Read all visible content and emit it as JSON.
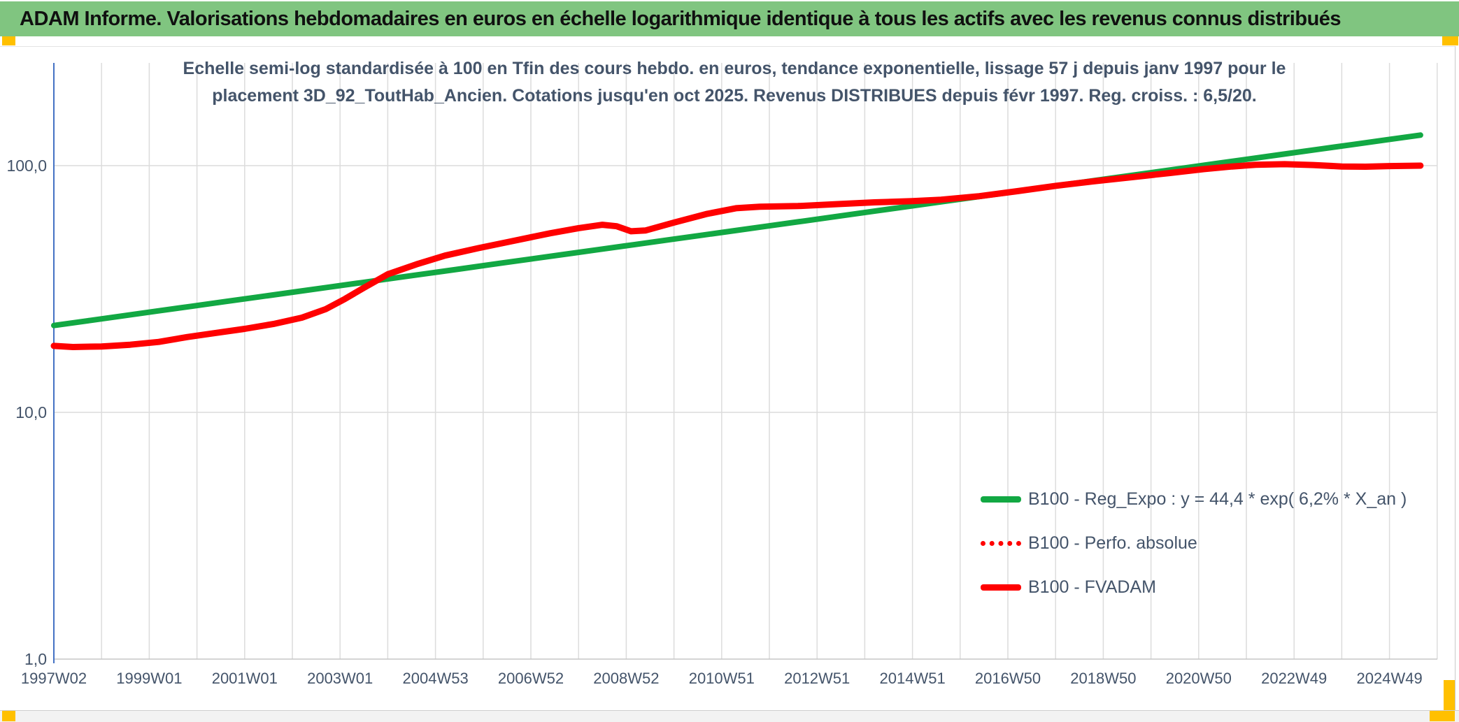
{
  "header": {
    "title": "ADAM Informe. Valorisations hebdomadaires en euros en échelle logarithmique identique à tous les actifs avec les revenus connus distribués"
  },
  "colors": {
    "header_bg": "#80c580",
    "accent_yellow": "#FFC000",
    "green_line": "#12a843",
    "red_line": "#ff0000",
    "text": "#44546A",
    "grid": "#dcdcdc",
    "axis_line": "#4472c4",
    "axis_base": "#c6c6c6"
  },
  "chart_data": {
    "type": "line",
    "title_line1": "Echelle semi-log standardisée à 100 en Tfin des cours hebdo. en euros, tendance exponentielle, lissage 57 j depuis janv 1997 pour le",
    "title_line2": "placement 3D_92_ToutHab_Ancien. Cotations jusqu'en oct 2025. Revenus DISTRIBUES depuis févr 1997. Reg. croiss. : 6,5/20.",
    "y_scale": "log10",
    "ylim": [
      1,
      260
    ],
    "xlim_years": [
      1997,
      2026
    ],
    "grid": "on",
    "legend_position": "inside-lower-right",
    "y_ticks": [
      {
        "value": 100,
        "label": "100,0"
      },
      {
        "value": 10,
        "label": "10,0"
      },
      {
        "value": 1,
        "label": "1,0"
      }
    ],
    "x_ticks": [
      {
        "year": 1997,
        "label": "1997W02"
      },
      {
        "year": 1999,
        "label": "1999W01"
      },
      {
        "year": 2001,
        "label": "2001W01"
      },
      {
        "year": 2003,
        "label": "2003W01"
      },
      {
        "year": 2005,
        "label": "2004W53"
      },
      {
        "year": 2007,
        "label": "2006W52"
      },
      {
        "year": 2009,
        "label": "2008W52"
      },
      {
        "year": 2011,
        "label": "2010W51"
      },
      {
        "year": 2013,
        "label": "2012W51"
      },
      {
        "year": 2015,
        "label": "2014W51"
      },
      {
        "year": 2017,
        "label": "2016W50"
      },
      {
        "year": 2019,
        "label": "2018W50"
      },
      {
        "year": 2021,
        "label": "2020W50"
      },
      {
        "year": 2023,
        "label": "2022W49"
      },
      {
        "year": 2025,
        "label": "2024W49"
      }
    ],
    "legend": [
      {
        "label": "B100 - Reg_Expo : y = 44,4 * exp( 6,2% *  X_an )",
        "color": "#12a843",
        "style": "solid"
      },
      {
        "label": "B100 - Perfo. absolue",
        "color": "#ff0000",
        "style": "dotted"
      },
      {
        "label": "B100 - FVADAM",
        "color": "#ff0000",
        "style": "solid"
      }
    ],
    "series": [
      {
        "name": "B100 - Reg_Expo",
        "color": "#12a843",
        "width": 8,
        "style": "solid",
        "interp": "log-linear",
        "points": [
          [
            1997.0,
            22.5
          ],
          [
            2025.65,
            133.0
          ]
        ]
      },
      {
        "name": "B100 - Perfo. absolue",
        "color": "#ff0000",
        "width": 6,
        "style": "dotted",
        "dash": "1 13",
        "points_same_as": "B100 - FVADAM"
      },
      {
        "name": "B100 - FVADAM",
        "color": "#ff0000",
        "width": 9,
        "style": "solid",
        "points": [
          [
            1997.0,
            18.6
          ],
          [
            1997.4,
            18.4
          ],
          [
            1998.0,
            18.5
          ],
          [
            1998.6,
            18.8
          ],
          [
            1999.2,
            19.3
          ],
          [
            1999.8,
            20.2
          ],
          [
            2000.4,
            21.0
          ],
          [
            2001.0,
            21.8
          ],
          [
            2001.6,
            22.8
          ],
          [
            2002.2,
            24.2
          ],
          [
            2002.7,
            26.2
          ],
          [
            2003.1,
            28.8
          ],
          [
            2003.5,
            32.0
          ],
          [
            2004.0,
            36.3
          ],
          [
            2004.6,
            39.8
          ],
          [
            2005.2,
            43.2
          ],
          [
            2005.9,
            46.3
          ],
          [
            2006.6,
            49.4
          ],
          [
            2007.4,
            53.2
          ],
          [
            2008.0,
            55.8
          ],
          [
            2008.5,
            57.6
          ],
          [
            2008.8,
            56.8
          ],
          [
            2009.1,
            54.2
          ],
          [
            2009.4,
            54.6
          ],
          [
            2010.0,
            58.8
          ],
          [
            2010.7,
            63.8
          ],
          [
            2011.3,
            67.2
          ],
          [
            2011.8,
            68.2
          ],
          [
            2012.6,
            68.6
          ],
          [
            2013.4,
            69.8
          ],
          [
            2014.2,
            71.0
          ],
          [
            2015.0,
            71.8
          ],
          [
            2015.6,
            72.8
          ],
          [
            2016.4,
            75.2
          ],
          [
            2017.2,
            78.8
          ],
          [
            2018.0,
            82.8
          ],
          [
            2018.8,
            86.4
          ],
          [
            2019.6,
            89.8
          ],
          [
            2020.4,
            93.4
          ],
          [
            2021.1,
            96.8
          ],
          [
            2021.7,
            99.2
          ],
          [
            2022.2,
            100.8
          ],
          [
            2022.8,
            101.4
          ],
          [
            2023.4,
            100.6
          ],
          [
            2024.0,
            99.2
          ],
          [
            2024.5,
            99.0
          ],
          [
            2025.0,
            99.6
          ],
          [
            2025.65,
            100.0
          ]
        ]
      }
    ]
  }
}
